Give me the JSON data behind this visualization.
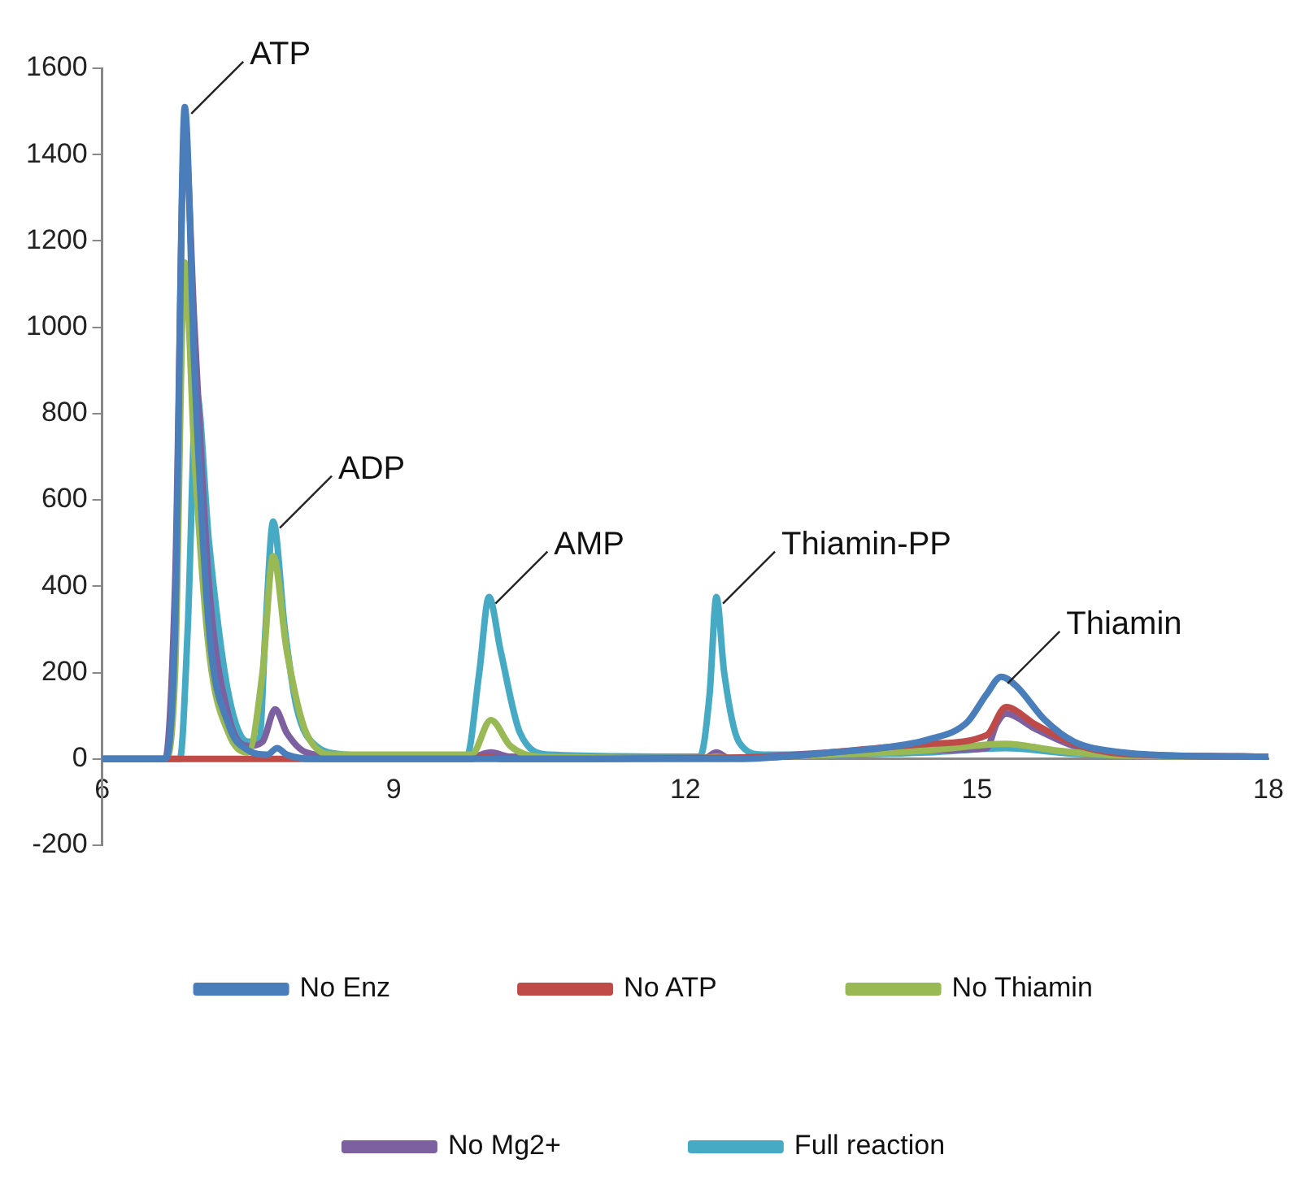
{
  "chart_data": {
    "type": "line",
    "xlim": [
      6,
      18
    ],
    "xticks": [
      6,
      9,
      12,
      15,
      18
    ],
    "ylim": [
      -200,
      1600
    ],
    "yticks": [
      -200,
      0,
      200,
      400,
      600,
      800,
      1000,
      1200,
      1400,
      1600
    ],
    "grid": false,
    "legend": "bottom",
    "marker": "none",
    "line_style": "solid",
    "annotations": [
      {
        "text": "ATP",
        "x": 6.85,
        "y": 1510
      },
      {
        "text": "ADP",
        "x": 7.76,
        "y": 550
      },
      {
        "text": "AMP",
        "x": 9.98,
        "y": 375
      },
      {
        "text": "Thiamin-PP",
        "x": 12.32,
        "y": 375
      },
      {
        "text": "Thiamin",
        "x": 15.25,
        "y": 190
      }
    ],
    "series": [
      {
        "name": "No Enz",
        "color": "#4a7ebb",
        "x": [
          6,
          6.65,
          6.75,
          6.85,
          6.95,
          7.1,
          7.3,
          7.5,
          7.7,
          7.8,
          7.9,
          8.2,
          12.6,
          13,
          13.5,
          14,
          14.5,
          14.9,
          15.1,
          15.25,
          15.4,
          15.7,
          16,
          16.5,
          17,
          18
        ],
        "values": [
          0,
          0,
          300,
          1510,
          900,
          300,
          80,
          20,
          10,
          25,
          10,
          0,
          0,
          5,
          15,
          25,
          45,
          85,
          150,
          190,
          170,
          90,
          40,
          15,
          8,
          5
        ]
      },
      {
        "name": "No ATP",
        "color": "#be4b48",
        "x": [
          6,
          9.8,
          9.95,
          10.1,
          13,
          13.5,
          14.5,
          15.1,
          15.3,
          15.6,
          16,
          16.5,
          18
        ],
        "values": [
          0,
          0,
          5,
          0,
          5,
          15,
          35,
          55,
          120,
          80,
          35,
          12,
          5
        ]
      },
      {
        "name": "No Thiamin",
        "color": "#98b954",
        "x": [
          6,
          6.65,
          6.75,
          6.85,
          6.95,
          7.1,
          7.3,
          7.5,
          7.65,
          7.76,
          7.9,
          8.1,
          8.4,
          9.8,
          10,
          10.2,
          10.5,
          12.2,
          12.32,
          12.45,
          13.5,
          14.5,
          15.3,
          15.8,
          16.5,
          18
        ],
        "values": [
          0,
          0,
          200,
          1150,
          700,
          250,
          60,
          15,
          200,
          470,
          250,
          60,
          10,
          10,
          90,
          30,
          5,
          2,
          5,
          2,
          10,
          20,
          35,
          20,
          8,
          5
        ]
      },
      {
        "name": "No Mg2+",
        "color": "#7d60a0",
        "x": [
          6,
          6.65,
          6.75,
          6.85,
          6.95,
          7.1,
          7.3,
          7.5,
          7.65,
          7.78,
          7.9,
          8.1,
          8.5,
          9.8,
          10,
          10.2,
          12.2,
          12.32,
          12.45,
          13.5,
          14.5,
          15.1,
          15.2,
          15.3,
          15.6,
          16,
          16.5,
          18
        ],
        "values": [
          0,
          0,
          400,
          1450,
          1000,
          400,
          100,
          30,
          40,
          115,
          60,
          15,
          5,
          5,
          15,
          5,
          2,
          15,
          2,
          15,
          20,
          25,
          80,
          105,
          70,
          30,
          12,
          5
        ]
      },
      {
        "name": "Full reaction",
        "color": "#46aac5",
        "x": [
          6,
          6.8,
          6.88,
          6.97,
          7.1,
          7.3,
          7.5,
          7.62,
          7.68,
          7.76,
          7.88,
          8,
          8.2,
          8.5,
          9,
          9.75,
          9.88,
          9.98,
          10.1,
          10.3,
          10.6,
          12.15,
          12.25,
          12.32,
          12.4,
          12.55,
          12.8,
          13.5,
          14.5,
          15.3,
          16,
          18
        ],
        "values": [
          0,
          0,
          300,
          850,
          500,
          150,
          40,
          50,
          300,
          550,
          300,
          120,
          30,
          10,
          5,
          5,
          200,
          375,
          250,
          60,
          10,
          5,
          150,
          375,
          200,
          40,
          10,
          10,
          15,
          25,
          12,
          5
        ]
      }
    ]
  }
}
